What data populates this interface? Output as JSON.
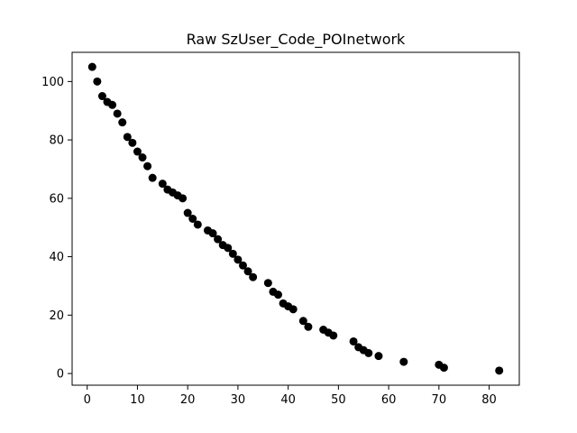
{
  "chart_data": {
    "type": "scatter",
    "title": "Raw SzUser_Code_POInetwork",
    "xlabel": "",
    "ylabel": "",
    "xlim": [
      -3,
      86
    ],
    "ylim": [
      -4,
      110
    ],
    "xticks": [
      0,
      10,
      20,
      30,
      40,
      50,
      60,
      70,
      80
    ],
    "yticks": [
      0,
      20,
      40,
      60,
      80,
      100
    ],
    "marker_color": "#000000",
    "grid": false,
    "points": [
      [
        1,
        105
      ],
      [
        2,
        100
      ],
      [
        3,
        95
      ],
      [
        4,
        93
      ],
      [
        5,
        92
      ],
      [
        6,
        89
      ],
      [
        7,
        86
      ],
      [
        8,
        81
      ],
      [
        9,
        79
      ],
      [
        10,
        76
      ],
      [
        11,
        74
      ],
      [
        12,
        71
      ],
      [
        13,
        67
      ],
      [
        15,
        65
      ],
      [
        16,
        63
      ],
      [
        17,
        62
      ],
      [
        18,
        61
      ],
      [
        19,
        60
      ],
      [
        20,
        55
      ],
      [
        21,
        53
      ],
      [
        22,
        51
      ],
      [
        24,
        49
      ],
      [
        25,
        48
      ],
      [
        26,
        46
      ],
      [
        27,
        44
      ],
      [
        28,
        43
      ],
      [
        29,
        41
      ],
      [
        30,
        39
      ],
      [
        31,
        37
      ],
      [
        32,
        35
      ],
      [
        33,
        33
      ],
      [
        36,
        31
      ],
      [
        37,
        28
      ],
      [
        38,
        27
      ],
      [
        39,
        24
      ],
      [
        40,
        23
      ],
      [
        41,
        22
      ],
      [
        43,
        18
      ],
      [
        44,
        16
      ],
      [
        47,
        15
      ],
      [
        48,
        14
      ],
      [
        49,
        13
      ],
      [
        53,
        11
      ],
      [
        54,
        9
      ],
      [
        55,
        8
      ],
      [
        56,
        7
      ],
      [
        58,
        6
      ],
      [
        63,
        4
      ],
      [
        70,
        3
      ],
      [
        71,
        2
      ],
      [
        82,
        1
      ]
    ]
  }
}
